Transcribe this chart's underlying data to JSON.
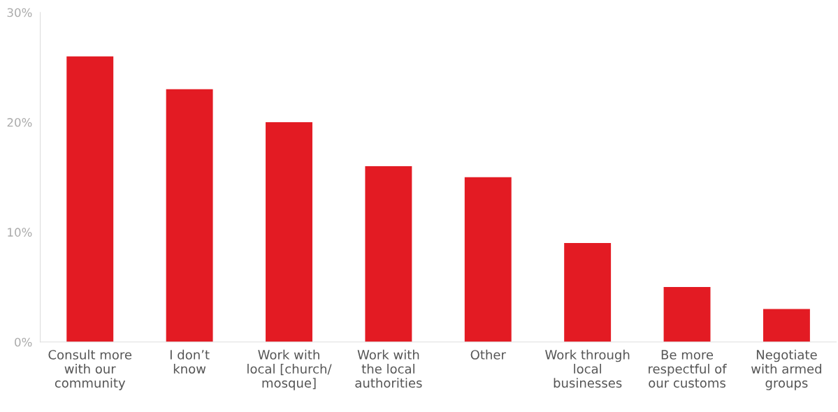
{
  "chart_data": {
    "type": "bar",
    "categories": [
      "Consult more\nwith our\ncommunity",
      "I don’t\nknow",
      "Work with\nlocal [church/\nmosque]",
      "Work with\nthe local\nauthorities",
      "Other",
      "Work through\nlocal\nbusinesses",
      "Be more\nrespectful of\nour customs",
      "Negotiate\nwith armed\ngroups"
    ],
    "values": [
      26,
      23,
      20,
      16,
      15,
      9,
      5,
      3
    ],
    "color": "#e31b23",
    "ylim": [
      0,
      30
    ],
    "yticks": [
      {
        "value": 0,
        "label": "0%"
      },
      {
        "value": 10,
        "label": "10%"
      },
      {
        "value": 20,
        "label": "20%"
      },
      {
        "value": 30,
        "label": "30%"
      }
    ],
    "grid": false,
    "legend": false
  }
}
